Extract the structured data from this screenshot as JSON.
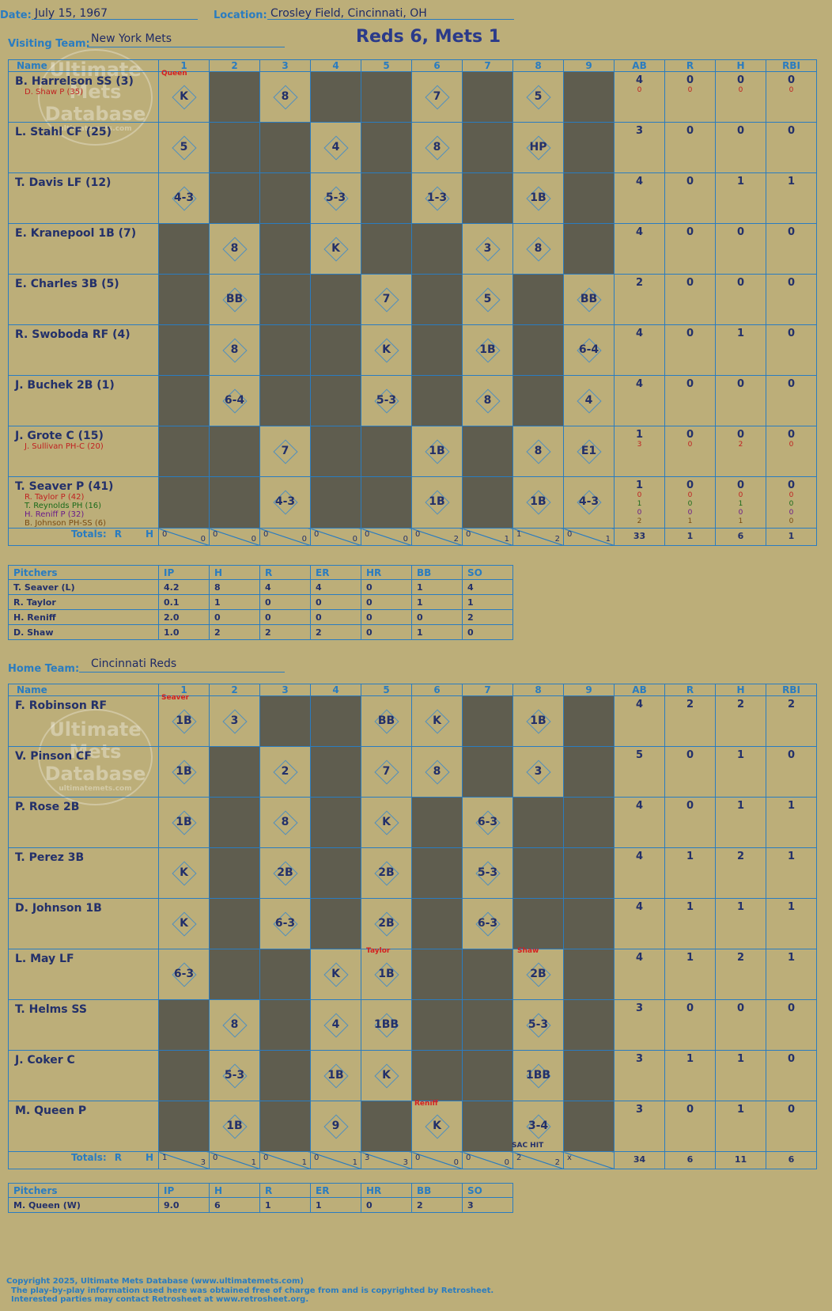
{
  "header": {
    "date_label": "Date:",
    "date": "July 15, 1967",
    "location_label": "Location:",
    "location": "Crosley Field, Cincinnati, OH",
    "visiting_label": "Visiting Team:",
    "visiting_team": "New York Mets",
    "home_label": "Home Team:",
    "home_team": "Cincinnati Reds",
    "score": "Reds 6, Mets 1"
  },
  "columns": {
    "name": "Name",
    "innings": [
      "1",
      "2",
      "3",
      "4",
      "5",
      "6",
      "7",
      "8",
      "9"
    ],
    "stats": [
      "AB",
      "R",
      "H",
      "RBI"
    ]
  },
  "watermark": {
    "line1": "Ultimate",
    "line2": "Mets",
    "line3": "Database",
    "url": "ultimatemets.com"
  },
  "visitors": {
    "rows": [
      {
        "name": "B. Harrelson SS (3)",
        "subs": [
          "D. Shaw P (35)"
        ],
        "dark": [
          1,
          3,
          4,
          6,
          8
        ],
        "plays": {
          "0": "K",
          "2": "8",
          "5": "7",
          "7": "5"
        },
        "ab": "4",
        "r": "0",
        "h": "0",
        "rbi": "0",
        "sab": [
          "0"
        ],
        "sr": [
          "0"
        ],
        "sh": [
          "0"
        ],
        "srbi": [
          "0"
        ]
      },
      {
        "name": "L. Stahl CF (25)",
        "subs": [],
        "dark": [
          1,
          2,
          4,
          6,
          8
        ],
        "plays": {
          "0": "5",
          "3": "4",
          "5": "8",
          "7": "HP"
        },
        "ab": "3",
        "r": "0",
        "h": "0",
        "rbi": "0"
      },
      {
        "name": "T. Davis LF (12)",
        "subs": [],
        "dark": [
          1,
          2,
          4,
          6,
          8
        ],
        "plays": {
          "0": "4-3",
          "3": "5-3",
          "5": "1-3",
          "7": "1B"
        },
        "ab": "4",
        "r": "0",
        "h": "1",
        "rbi": "1"
      },
      {
        "name": "E. Kranepool 1B (7)",
        "subs": [],
        "dark": [
          0,
          2,
          4,
          5,
          8
        ],
        "plays": {
          "1": "8",
          "3": "K",
          "6": "3",
          "7": "8"
        },
        "ab": "4",
        "r": "0",
        "h": "0",
        "rbi": "0"
      },
      {
        "name": "E. Charles 3B (5)",
        "subs": [],
        "dark": [
          0,
          2,
          3,
          5,
          7
        ],
        "plays": {
          "1": "BB",
          "4": "7",
          "6": "5",
          "8": "BB"
        },
        "ab": "2",
        "r": "0",
        "h": "0",
        "rbi": "0"
      },
      {
        "name": "R. Swoboda RF (4)",
        "subs": [],
        "dark": [
          0,
          2,
          3,
          5,
          7
        ],
        "plays": {
          "1": "8",
          "4": "K",
          "6": "1B",
          "8": "6-4"
        },
        "ab": "4",
        "r": "0",
        "h": "1",
        "rbi": "0"
      },
      {
        "name": "J. Buchek 2B (1)",
        "subs": [],
        "dark": [
          0,
          2,
          3,
          5,
          7
        ],
        "plays": {
          "1": "6-4",
          "4": "5-3",
          "6": "8",
          "8": "4"
        },
        "ab": "4",
        "r": "0",
        "h": "0",
        "rbi": "0"
      },
      {
        "name": "J. Grote C (15)",
        "subs": [
          "J. Sullivan PH-C (20)"
        ],
        "dark": [
          0,
          1,
          3,
          4,
          6
        ],
        "plays": {
          "2": "7",
          "5": "1B",
          "7": "8",
          "8": "E1"
        },
        "ab": "1",
        "r": "0",
        "h": "0",
        "rbi": "0",
        "sab": [
          "3"
        ],
        "sr": [
          "0"
        ],
        "sh": [
          "2"
        ],
        "srbi": [
          "0"
        ]
      },
      {
        "name": "T. Seaver P (41)",
        "subs": [
          "R. Taylor P (42)",
          "T. Reynolds PH (16)",
          "H. Reniff P (32)",
          "B. Johnson PH-SS (6)"
        ],
        "dark": [
          0,
          1,
          3,
          4,
          6
        ],
        "plays": {
          "2": "4-3",
          "5": "1B",
          "7": "1B",
          "8": "4-3"
        },
        "ab": "1",
        "r": "0",
        "h": "0",
        "rbi": "0",
        "sab": [
          "0",
          "1",
          "0",
          "2"
        ],
        "sr": [
          "0",
          "0",
          "0",
          "1"
        ],
        "sh": [
          "0",
          "1",
          "0",
          "1"
        ],
        "srbi": [
          "0",
          "0",
          "0",
          "0"
        ]
      }
    ],
    "totals": {
      "label": "Totals:",
      "r_label": "R",
      "h_label": "H",
      "innings": [
        [
          "0",
          "0"
        ],
        [
          "0",
          "0"
        ],
        [
          "0",
          "0"
        ],
        [
          "0",
          "0"
        ],
        [
          "0",
          "0"
        ],
        [
          "0",
          "2"
        ],
        [
          "0",
          "1"
        ],
        [
          "1",
          "2"
        ],
        [
          "0",
          "1"
        ]
      ],
      "ab": "33",
      "r": "1",
      "h": "6",
      "rbi": "1"
    },
    "pitcher_header": [
      "Pitchers",
      "IP",
      "H",
      "R",
      "ER",
      "HR",
      "BB",
      "SO"
    ],
    "pitchers": [
      [
        "T. Seaver (L)",
        "4.2",
        "8",
        "4",
        "4",
        "0",
        "1",
        "4"
      ],
      [
        "R. Taylor",
        "0.1",
        "1",
        "0",
        "0",
        "0",
        "1",
        "1"
      ],
      [
        "H. Reniff",
        "2.0",
        "0",
        "0",
        "0",
        "0",
        "0",
        "2"
      ],
      [
        "D. Shaw",
        "1.0",
        "2",
        "2",
        "2",
        "0",
        "1",
        "0"
      ]
    ]
  },
  "home": {
    "rows": [
      {
        "name": "F. Robinson RF",
        "subs": [],
        "dark": [
          2,
          3,
          6,
          8
        ],
        "plays": {
          "0": "1B",
          "1": "3",
          "4": "BB",
          "5": "K",
          "7": "1B"
        },
        "ab": "4",
        "r": "2",
        "h": "2",
        "rbi": "2"
      },
      {
        "name": "V. Pinson CF",
        "subs": [],
        "dark": [
          1,
          3,
          6,
          8
        ],
        "plays": {
          "0": "1B",
          "2": "2",
          "4": "7",
          "5": "8",
          "7": "3"
        },
        "ab": "5",
        "r": "0",
        "h": "1",
        "rbi": "0"
      },
      {
        "name": "P. Rose 2B",
        "subs": [],
        "dark": [
          1,
          3,
          5,
          7,
          8
        ],
        "plays": {
          "0": "1B",
          "2": "8",
          "4": "K",
          "6": "6-3"
        },
        "ab": "4",
        "r": "0",
        "h": "1",
        "rbi": "1"
      },
      {
        "name": "T. Perez 3B",
        "subs": [],
        "dark": [
          1,
          3,
          5,
          7,
          8
        ],
        "plays": {
          "0": "K",
          "2": "2B",
          "4": "2B",
          "6": "5-3"
        },
        "ab": "4",
        "r": "1",
        "h": "2",
        "rbi": "1"
      },
      {
        "name": "D. Johnson 1B",
        "subs": [],
        "dark": [
          1,
          3,
          5,
          7,
          8
        ],
        "plays": {
          "0": "K",
          "2": "6-3",
          "4": "2B",
          "6": "6-3"
        },
        "ab": "4",
        "r": "1",
        "h": "1",
        "rbi": "1"
      },
      {
        "name": "L. May LF",
        "subs": [],
        "dark": [
          1,
          2,
          5,
          6,
          8
        ],
        "plays": {
          "0": "6-3",
          "3": "K",
          "4": "1B",
          "7": "2B"
        },
        "ab": "4",
        "r": "1",
        "h": "2",
        "rbi": "1"
      },
      {
        "name": "T. Helms SS",
        "subs": [],
        "dark": [
          0,
          2,
          5,
          6,
          8
        ],
        "plays": {
          "1": "8",
          "3": "4",
          "4": "1BB",
          "7": "5-3"
        },
        "ab": "3",
        "r": "0",
        "h": "0",
        "rbi": "0"
      },
      {
        "name": "J. Coker C",
        "subs": [],
        "dark": [
          0,
          2,
          5,
          6,
          8
        ],
        "plays": {
          "1": "5-3",
          "3": "1B",
          "4": "K",
          "7": "1BB"
        },
        "ab": "3",
        "r": "1",
        "h": "1",
        "rbi": "0"
      },
      {
        "name": "M. Queen P",
        "subs": [],
        "dark": [
          0,
          2,
          4,
          6,
          8
        ],
        "plays": {
          "1": "1B",
          "3": "9",
          "5": "K",
          "7": "3-4"
        },
        "ab": "3",
        "r": "0",
        "h": "1",
        "rbi": "0"
      }
    ],
    "totals": {
      "label": "Totals:",
      "r_label": "R",
      "h_label": "H",
      "innings": [
        [
          "1",
          "3"
        ],
        [
          "0",
          "1"
        ],
        [
          "0",
          "1"
        ],
        [
          "0",
          "1"
        ],
        [
          "3",
          "3"
        ],
        [
          "0",
          "0"
        ],
        [
          "0",
          "0"
        ],
        [
          "2",
          "2"
        ],
        [
          "x",
          ""
        ]
      ],
      "ab": "34",
      "r": "6",
      "h": "11",
      "rbi": "6"
    },
    "pitcher_header": [
      "Pitchers",
      "IP",
      "H",
      "R",
      "ER",
      "HR",
      "BB",
      "SO"
    ],
    "pitchers": [
      [
        "M. Queen (W)",
        "9.0",
        "6",
        "1",
        "1",
        "0",
        "2",
        "3"
      ]
    ]
  },
  "notes": {
    "queen": "Queen",
    "seaver": "Seaver",
    "taylor": "Taylor",
    "shaw": "Shaw",
    "reniff": "Reniff",
    "sac": "SAC HIT"
  },
  "footer": {
    "line1": "Copyright 2025, Ultimate Mets Database (www.ultimatemets.com)",
    "line2": "The play-by-play information used here was obtained free of charge from and is copyrighted by Retrosheet.",
    "line3": "Interested parties may contact Retrosheet at www.retrosheet.org."
  },
  "colors": {
    "background": "#bcae79",
    "grid": "#2a7cc0",
    "dark_cell": "#5f5d4f",
    "ink": "#23306a",
    "red_note": "#d42020"
  }
}
